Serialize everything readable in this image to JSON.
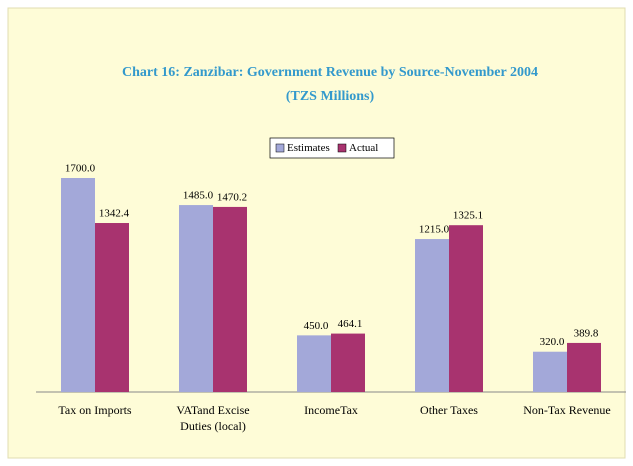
{
  "chart_data": {
    "type": "bar",
    "title": "Chart 16: Zanzibar: Government Revenue by Source-November 2004",
    "subtitle": "(TZS Millions)",
    "categories": [
      "Tax on Imports",
      "VATand Excise\nDuties (local)",
      "IncomeTax",
      "Other Taxes",
      "Non-Tax Revenue"
    ],
    "series": [
      {
        "name": "Estimates",
        "color": "#a3a8d9",
        "values": [
          1700.0,
          1485.0,
          450.0,
          1215.0,
          320.0
        ],
        "value_labels": [
          "1700.0",
          "1485.0",
          "450.0",
          "1215.0",
          "320.0"
        ]
      },
      {
        "name": "Actual",
        "color": "#a8336f",
        "values": [
          1342.4,
          1470.2,
          464.1,
          1325.1,
          389.8
        ],
        "value_labels": [
          "1342.4",
          "1470.2",
          "464.1",
          "1325.1",
          "389.8"
        ]
      }
    ],
    "ylim": [
      0,
      1800
    ],
    "legend": "top"
  }
}
